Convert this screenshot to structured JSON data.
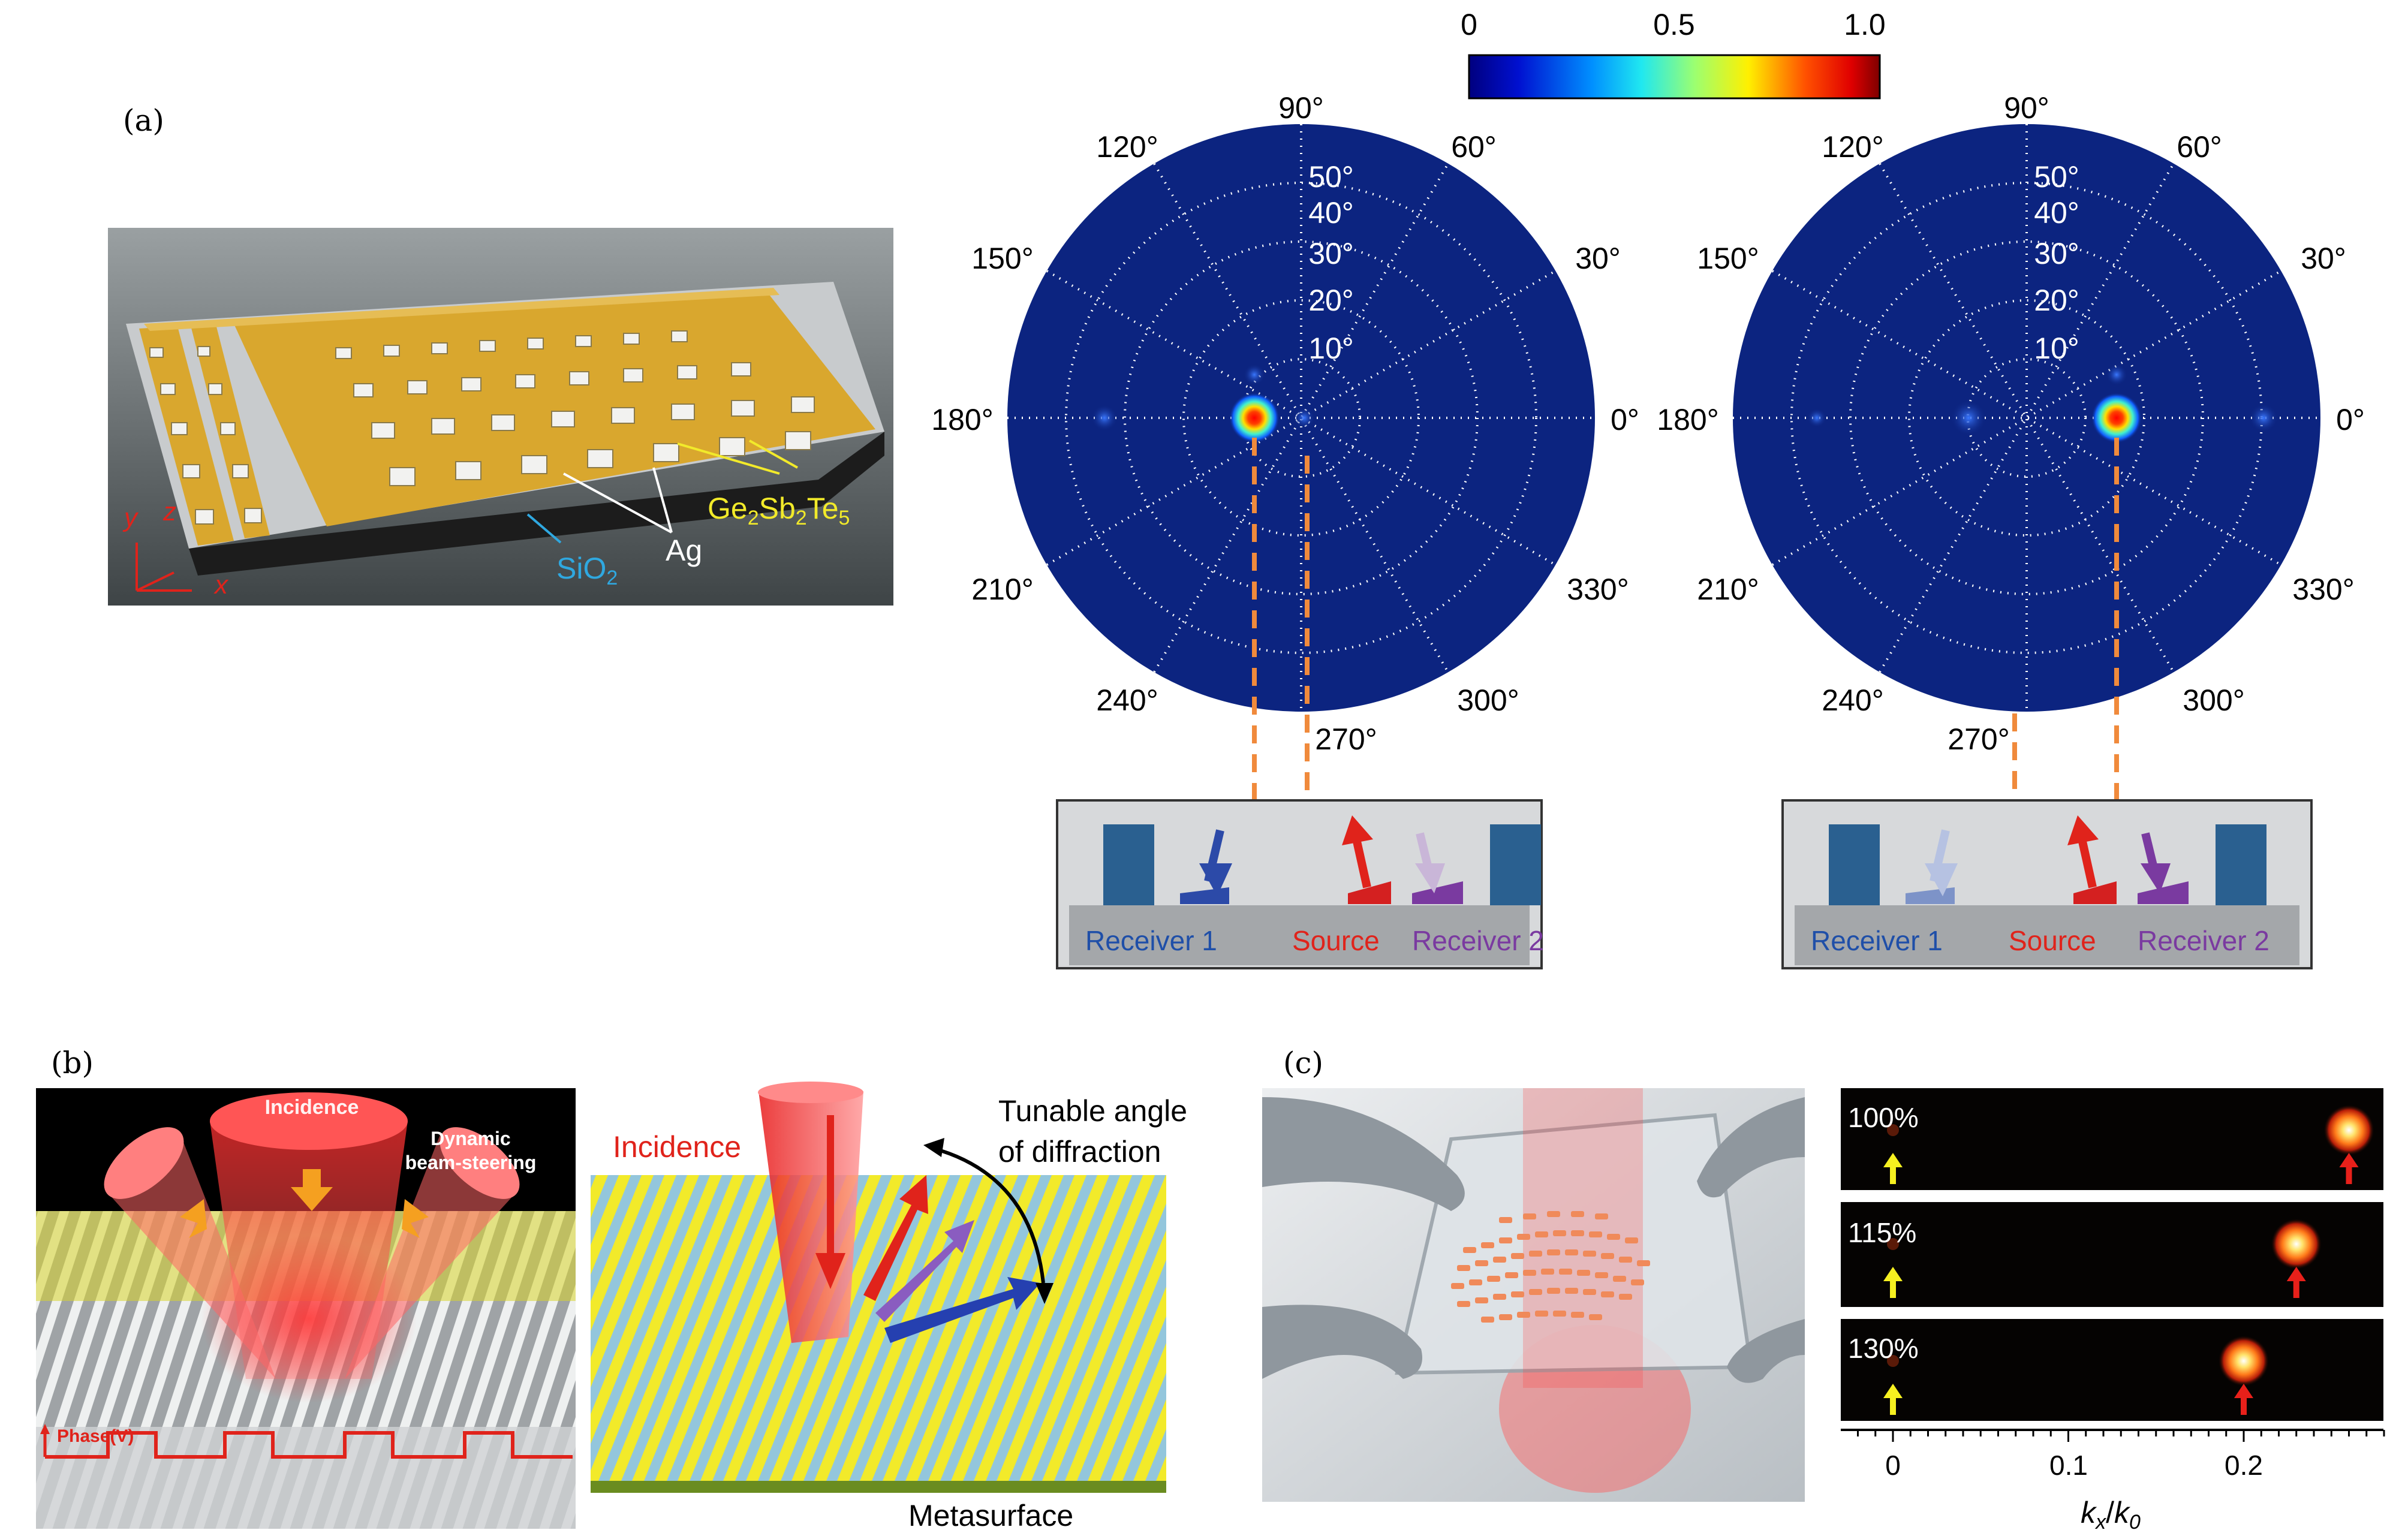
{
  "panel_a": {
    "label": "(a)",
    "material_labels": {
      "sio2": "SiO",
      "sio2_sub": "2",
      "ag": "Ag",
      "gst": [
        "Ge",
        "2",
        "Sb",
        "2",
        "Te",
        "5"
      ]
    },
    "axes": {
      "y": "y",
      "z": "z",
      "x": "x"
    },
    "colorbar": {
      "ticks": [
        "0",
        "0.5",
        "1.0"
      ],
      "range": [
        0,
        1.0
      ]
    },
    "polar_angle_labels": [
      "90°",
      "120°",
      "60°",
      "150°",
      "30°",
      "180°",
      "0°",
      "210°",
      "330°",
      "240°",
      "300°",
      "270°"
    ],
    "polar_radial_labels": [
      "50°",
      "40°",
      "30°",
      "20°",
      "10°"
    ],
    "schematic_labels": {
      "receiver1": "Receiver 1",
      "source": "Source",
      "receiver2": "Receiver 2"
    }
  },
  "panel_b": {
    "label": "(b)",
    "texts": {
      "incidence": "Incidence",
      "dynamic1": "Dynamic",
      "dynamic2": "beam-steering",
      "phase": "Phase(V)",
      "incidence_right": "Incidence",
      "tunable1": "Tunable angle",
      "tunable2": "of diffraction",
      "metasurface": "Metasurface"
    }
  },
  "panel_c": {
    "label": "(c)",
    "strips": [
      "100%",
      "115%",
      "130%"
    ],
    "xticks": [
      "0",
      "0.1",
      "0.2"
    ],
    "xlabel_k": "k",
    "xlabel_sub1": "x",
    "xlabel_sep": "/",
    "xlabel_k0": "k",
    "xlabel_sub2": "0",
    "chart_data": {
      "type": "scatter",
      "x": [
        0.26,
        0.23,
        0.2
      ],
      "series": [
        {
          "values": [
            100,
            115,
            130
          ]
        }
      ],
      "xlim": [
        -0.03,
        0.28
      ]
    }
  },
  "colors": {
    "polar_bg": "#0c2480",
    "dash": "#f08a3c",
    "gold": "#d9a72e",
    "red": "#e0231b",
    "blue": "#1f4fa8",
    "purple": "#7a3aa0"
  }
}
